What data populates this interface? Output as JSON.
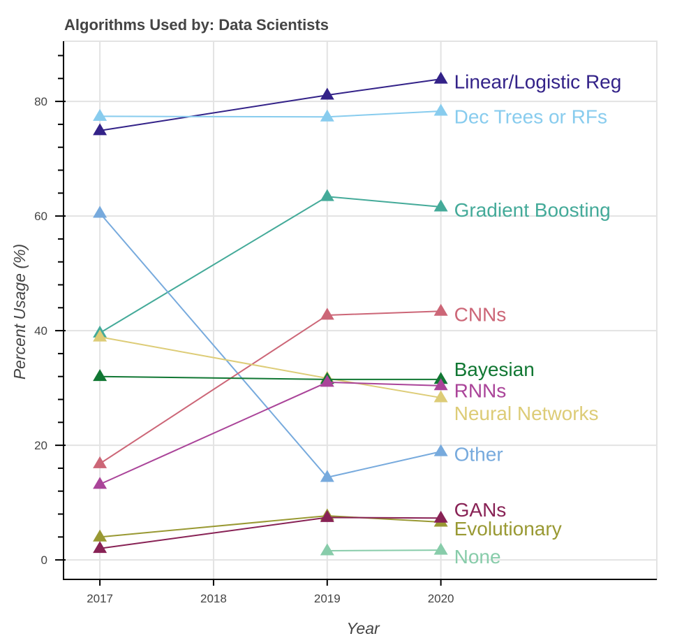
{
  "chart_data": {
    "type": "line",
    "title": "Algorithms Used by: Data Scientists",
    "xlabel": "Year",
    "ylabel": "Percent Usage (%)",
    "x_ticks": [
      "2017",
      "2018",
      "2019",
      "2020"
    ],
    "x_tick_values": [
      2017,
      2018,
      2019,
      2020
    ],
    "y_ticks": [
      "0",
      "20",
      "40",
      "60",
      "80"
    ],
    "y_tick_values": [
      0,
      20,
      40,
      60,
      80
    ],
    "y_minor_step": 4,
    "xlim": [
      2016.68,
      2021.9
    ],
    "ylim": [
      -3.4,
      90.5
    ],
    "grid": true,
    "legend": "inline labels at right end of each series",
    "marker": "triangle-up",
    "series": [
      {
        "name": "Linear/Logistic Reg",
        "color": "#332288",
        "x": [
          2017,
          2019,
          2020
        ],
        "values": [
          74.9,
          81.1,
          83.9
        ],
        "label_value": 83.5
      },
      {
        "name": "Dec Trees or RFs",
        "color": "#88CCEE",
        "x": [
          2017,
          2019,
          2020
        ],
        "values": [
          77.4,
          77.3,
          78.3
        ],
        "label_value": 77.4
      },
      {
        "name": "Gradient Boosting",
        "color": "#44AA99",
        "x": [
          2017,
          2019,
          2020
        ],
        "values": [
          39.6,
          63.4,
          61.6
        ],
        "label_value": 61.1
      },
      {
        "name": "Other",
        "color": "#77AADD",
        "x": [
          2017,
          2019,
          2020
        ],
        "values": [
          60.5,
          14.4,
          18.9
        ],
        "label_value": 18.5
      },
      {
        "name": "CNNs",
        "color": "#CC6677",
        "x": [
          2017,
          2019,
          2020
        ],
        "values": [
          16.8,
          42.7,
          43.4
        ],
        "label_value": 42.9
      },
      {
        "name": "Neural Networks",
        "color": "#DDCC77",
        "x": [
          2017,
          2019,
          2020
        ],
        "values": [
          38.9,
          31.7,
          28.3
        ],
        "label_value": 25.6
      },
      {
        "name": "Bayesian",
        "color": "#117733",
        "x": [
          2017,
          2019,
          2020
        ],
        "values": [
          32.0,
          31.5,
          31.5
        ],
        "label_value": 33.3
      },
      {
        "name": "RNNs",
        "color": "#AA4499",
        "x": [
          2017,
          2019,
          2020
        ],
        "values": [
          13.2,
          31.0,
          30.4
        ],
        "label_value": 29.6
      },
      {
        "name": "Evolutionary",
        "color": "#999933",
        "x": [
          2017,
          2019,
          2020
        ],
        "values": [
          4.0,
          7.7,
          6.6
        ],
        "label_value": 5.5
      },
      {
        "name": "GANs",
        "color": "#882255",
        "x": [
          2017,
          2019,
          2020
        ],
        "values": [
          2.0,
          7.4,
          7.3
        ],
        "label_value": 8.8
      },
      {
        "name": "None",
        "color": "#88CCAA",
        "x": [
          2019,
          2020
        ],
        "values": [
          1.6,
          1.7
        ],
        "label_value": 0.6
      }
    ]
  }
}
